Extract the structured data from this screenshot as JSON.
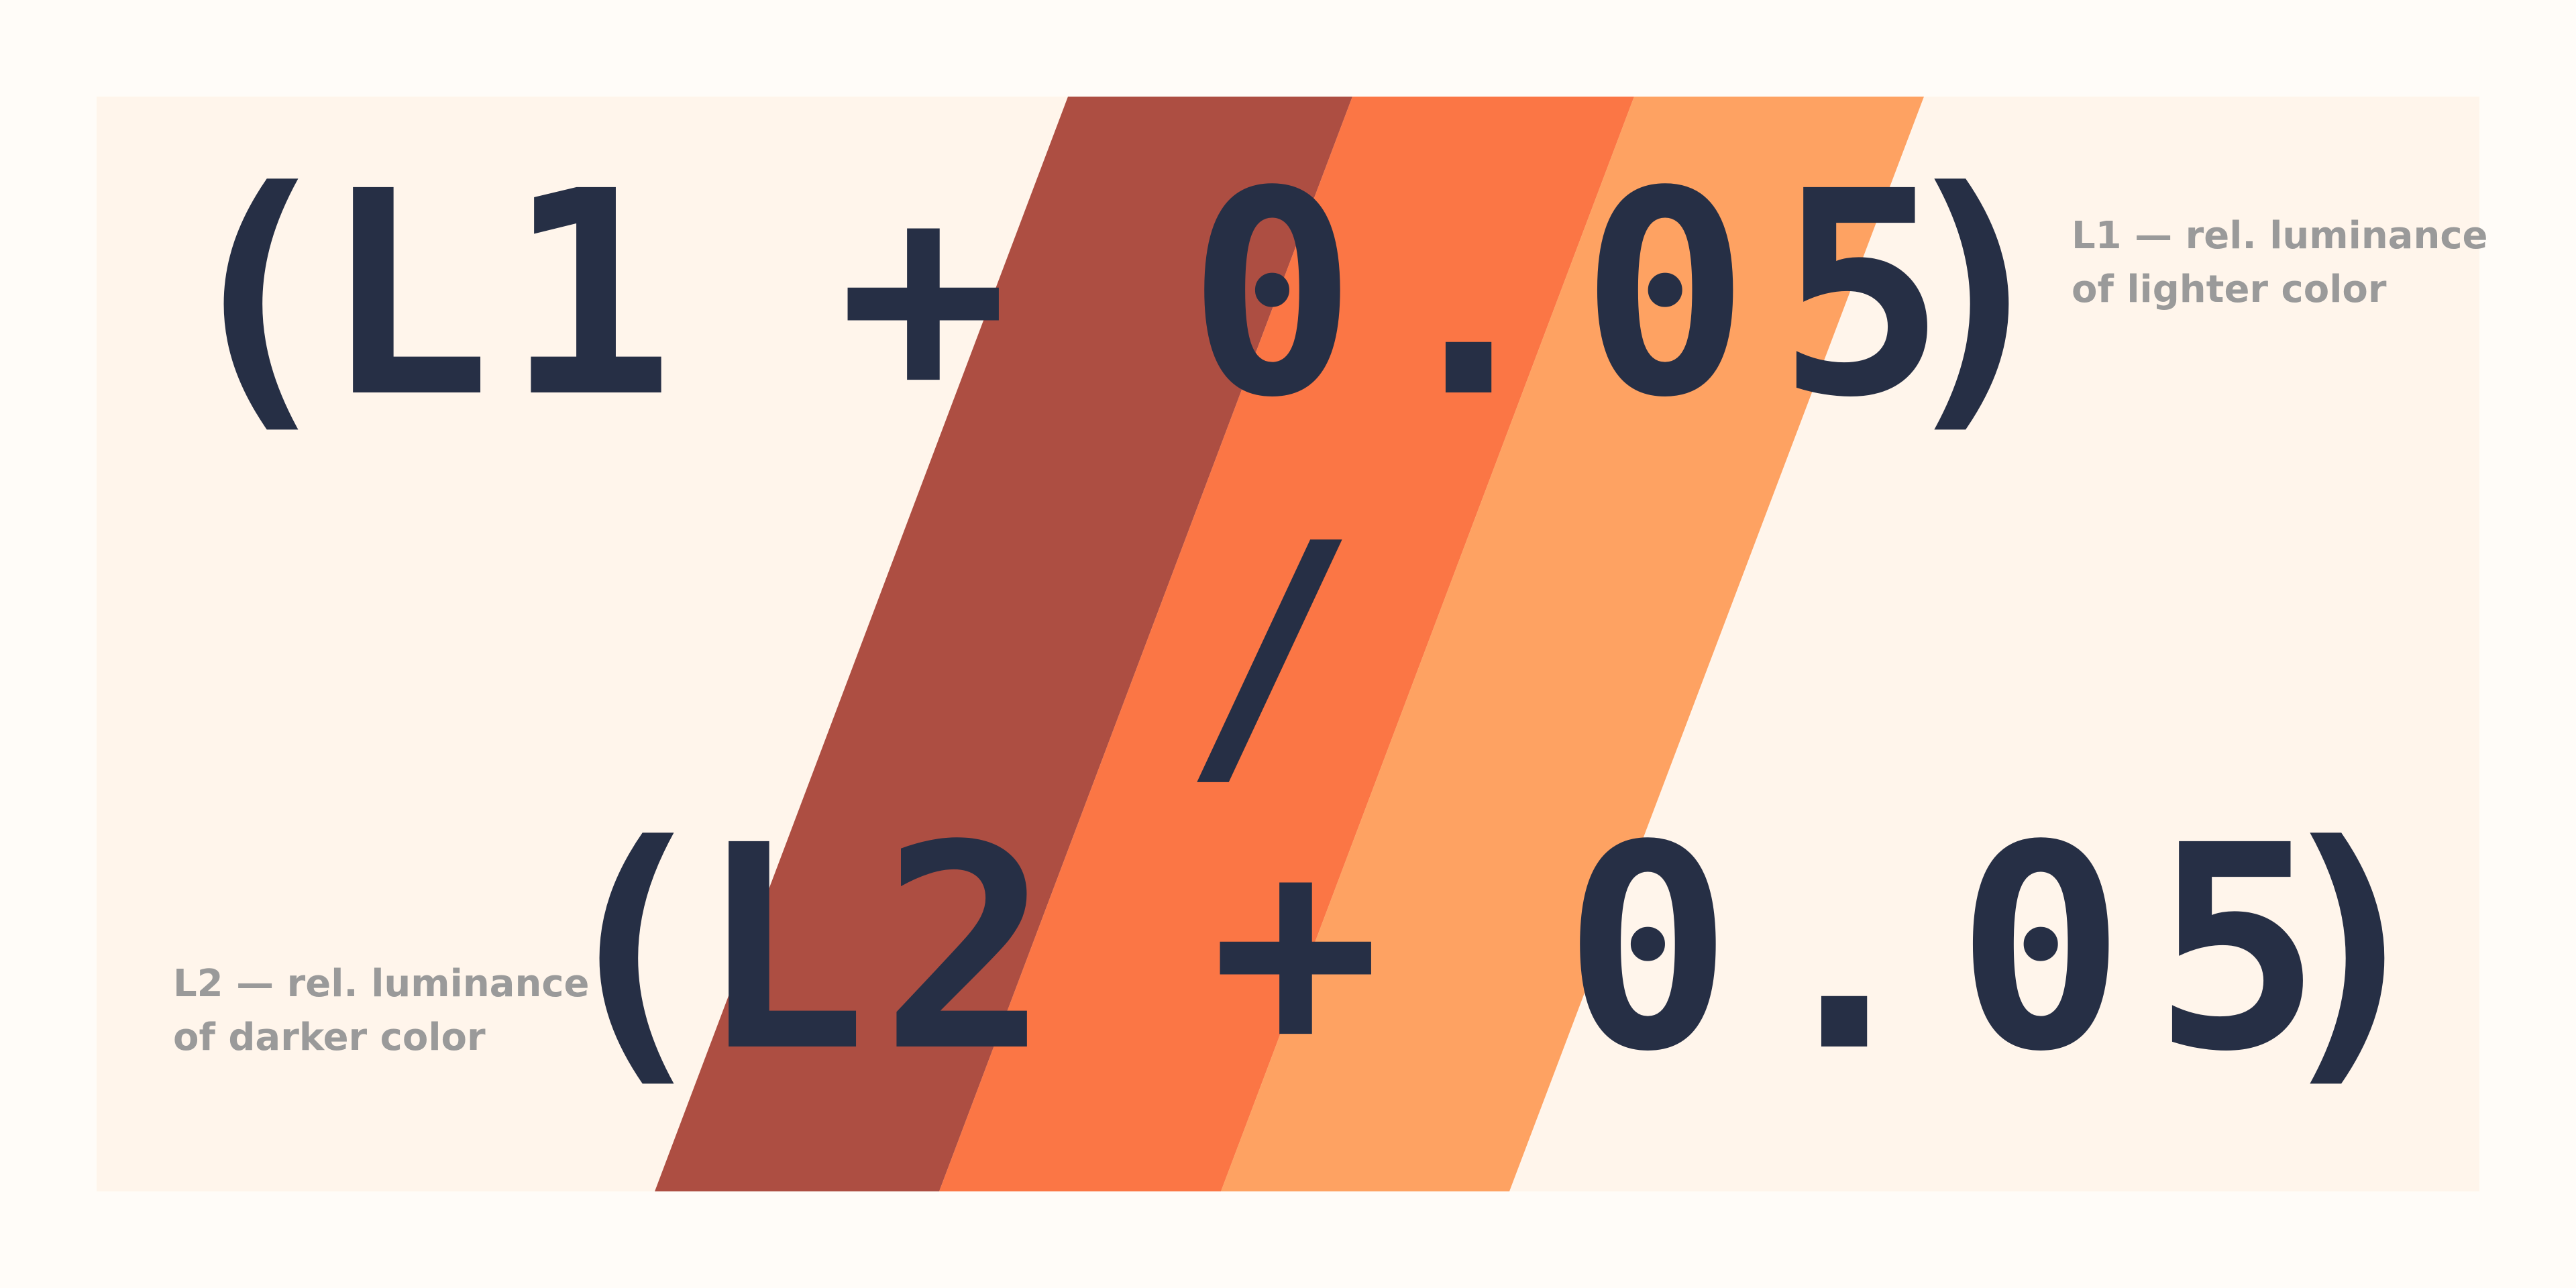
{
  "formula": {
    "numerator": "(L1 + 0.05)",
    "divider": "/",
    "denominator": "(L2 + 0.05)",
    "numerator_parts": {
      "open_paren": "(",
      "term": "L1",
      "plus": "+",
      "constant": "0.05",
      "close_paren": ")"
    },
    "denominator_parts": {
      "open_paren": "(",
      "term": "L2",
      "plus": "+",
      "constant": "0.05",
      "close_paren": ")"
    }
  },
  "notes": {
    "l1_line1": "L1 — rel. luminance",
    "l1_line2": "of lighter color",
    "l2_line1": "L2 — rel. luminance",
    "l2_line2": "of darker color"
  },
  "colors": {
    "background": "#fffcf8",
    "panel": "#fff5eb",
    "stripe_dark": "#ad4e42",
    "stripe_mid": "#fb7645",
    "stripe_light": "#fea262",
    "text": "#262f45",
    "note_text": "#9a9a9a"
  }
}
